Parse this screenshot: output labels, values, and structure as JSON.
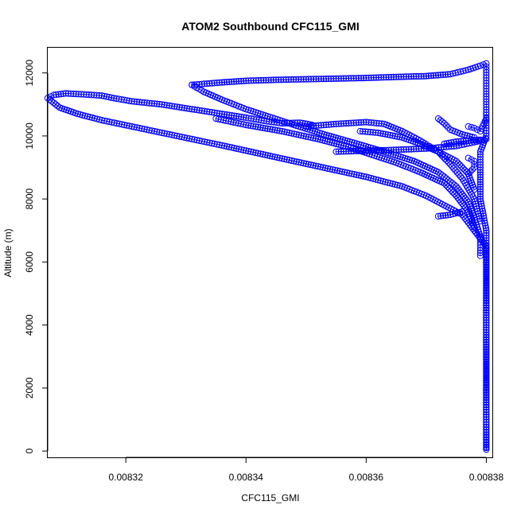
{
  "chart_data": {
    "type": "scatter",
    "title": "ATOM2 Southbound CFC115_GMI",
    "xlabel": "CFC115_GMI",
    "ylabel": "Altitude (m)",
    "xlim": [
      0.008307,
      0.008381
    ],
    "ylim": [
      -200,
      12800
    ],
    "x_ticks": [
      0.00832,
      0.00834,
      0.00836,
      0.00838
    ],
    "x_tick_labels": [
      "0.00832",
      "0.00834",
      "0.00836",
      "0.00838"
    ],
    "y_ticks": [
      0,
      2000,
      4000,
      6000,
      8000,
      10000,
      12000
    ],
    "y_tick_labels": [
      "0",
      "2000",
      "4000",
      "6000",
      "8000",
      "10000",
      "12000"
    ],
    "grid": false,
    "legend": "none",
    "colors": {
      "series": "#0000ff",
      "axes": "#000000"
    },
    "series": [
      {
        "marker": "open-circle",
        "connected": true,
        "segments": [
          [
            [
              0.00838,
              50
            ],
            [
              0.00838,
              1000
            ],
            [
              0.00838,
              2000
            ],
            [
              0.00838,
              3000
            ],
            [
              0.00838,
              4000
            ],
            [
              0.00838,
              5000
            ],
            [
              0.00838,
              6000
            ],
            [
              0.00838,
              6500
            ],
            [
              0.008378,
              7000
            ],
            [
              0.008376,
              7500
            ],
            [
              0.008373,
              7800
            ],
            [
              0.00837,
              8100
            ],
            [
              0.008366,
              8400
            ],
            [
              0.00836,
              8700
            ],
            [
              0.008354,
              8950
            ],
            [
              0.008348,
              9200
            ],
            [
              0.008342,
              9450
            ],
            [
              0.008336,
              9700
            ],
            [
              0.008331,
              9900
            ],
            [
              0.008326,
              10100
            ],
            [
              0.008321,
              10300
            ],
            [
              0.008316,
              10500
            ],
            [
              0.008312,
              10700
            ],
            [
              0.008309,
              10900
            ],
            [
              0.008308,
              11050
            ],
            [
              0.008307,
              11200
            ],
            [
              0.008308,
              11300
            ],
            [
              0.00831,
              11350
            ],
            [
              0.008313,
              11320
            ],
            [
              0.008316,
              11280
            ],
            [
              0.008318,
              11200
            ],
            [
              0.008321,
              11100
            ],
            [
              0.008326,
              11000
            ],
            [
              0.008331,
              10850
            ],
            [
              0.008336,
              10700
            ],
            [
              0.00834,
              10580
            ],
            [
              0.008343,
              10480
            ],
            [
              0.008346,
              10400
            ],
            [
              0.008349,
              10420
            ],
            [
              0.008351,
              10350
            ]
          ],
          [
            [
              0.008331,
              11620
            ],
            [
              0.008336,
              11700
            ],
            [
              0.00834,
              11750
            ],
            [
              0.008345,
              11780
            ],
            [
              0.00835,
              11800
            ],
            [
              0.008355,
              11820
            ],
            [
              0.00836,
              11840
            ],
            [
              0.008365,
              11870
            ],
            [
              0.00837,
              11900
            ],
            [
              0.008374,
              11960
            ],
            [
              0.008377,
              12100
            ],
            [
              0.008379,
              12230
            ],
            [
              0.00838,
              12300
            ],
            [
              0.00838,
              12100
            ],
            [
              0.00838,
              11500
            ],
            [
              0.00838,
              11000
            ],
            [
              0.00838,
              10500
            ],
            [
              0.00838,
              10000
            ],
            [
              0.008379,
              9500
            ],
            [
              0.008379,
              9000
            ],
            [
              0.008379,
              8000
            ],
            [
              0.00838,
              7000
            ],
            [
              0.00838,
              5500
            ],
            [
              0.00838,
              4000
            ],
            [
              0.00838,
              2500
            ],
            [
              0.00838,
              1000
            ],
            [
              0.00838,
              100
            ]
          ],
          [
            [
              0.008331,
              11620
            ],
            [
              0.008333,
              11400
            ],
            [
              0.008336,
              11150
            ],
            [
              0.00834,
              10850
            ],
            [
              0.008344,
              10600
            ],
            [
              0.008348,
              10350
            ],
            [
              0.008353,
              10050
            ],
            [
              0.008358,
              9780
            ],
            [
              0.008363,
              9500
            ],
            [
              0.008368,
              9200
            ],
            [
              0.008372,
              8850
            ],
            [
              0.008375,
              8400
            ],
            [
              0.008377,
              7900
            ],
            [
              0.008378,
              7400
            ],
            [
              0.008379,
              6800
            ],
            [
              0.008379,
              6200
            ]
          ],
          [
            [
              0.008335,
              10550
            ],
            [
              0.00834,
              10350
            ],
            [
              0.008346,
              10150
            ],
            [
              0.008352,
              9900
            ],
            [
              0.008357,
              9650
            ],
            [
              0.008361,
              9400
            ],
            [
              0.008365,
              9150
            ],
            [
              0.008369,
              8850
            ],
            [
              0.008373,
              8500
            ],
            [
              0.008375,
              8100
            ],
            [
              0.008377,
              7600
            ],
            [
              0.008378,
              7100
            ]
          ],
          [
            [
              0.00835,
              10300
            ],
            [
              0.008355,
              10380
            ],
            [
              0.00836,
              10440
            ],
            [
              0.008363,
              10380
            ],
            [
              0.008366,
              10150
            ],
            [
              0.008369,
              9850
            ],
            [
              0.008372,
              9500
            ],
            [
              0.008374,
              9100
            ],
            [
              0.008376,
              8650
            ],
            [
              0.008378,
              8000
            ],
            [
              0.008379,
              7300
            ]
          ],
          [
            [
              0.008355,
              9500
            ],
            [
              0.00836,
              9530
            ],
            [
              0.008365,
              9560
            ],
            [
              0.00837,
              9600
            ],
            [
              0.008375,
              9680
            ],
            [
              0.008378,
              9800
            ],
            [
              0.00838,
              9900
            ]
          ],
          [
            [
              0.008359,
              10150
            ],
            [
              0.008362,
              10100
            ],
            [
              0.008366,
              9950
            ],
            [
              0.008369,
              9750
            ],
            [
              0.008372,
              9500
            ],
            [
              0.008375,
              9200
            ],
            [
              0.008377,
              8800
            ],
            [
              0.008378,
              8300
            ]
          ],
          [
            [
              0.008373,
              9750
            ],
            [
              0.008375,
              9820
            ],
            [
              0.008377,
              9850
            ],
            [
              0.008379,
              9880
            ]
          ],
          [
            [
              0.008372,
              10550
            ],
            [
              0.008373,
              10400
            ],
            [
              0.008374,
              10200
            ],
            [
              0.008376,
              10050
            ],
            [
              0.008378,
              9950
            ]
          ],
          [
            [
              0.008377,
              8800
            ],
            [
              0.008378,
              9000
            ],
            [
              0.008378,
              9200
            ],
            [
              0.008377,
              9300
            ]
          ],
          [
            [
              0.008376,
              7600
            ],
            [
              0.008374,
              7500
            ],
            [
              0.008372,
              7450
            ]
          ],
          [
            [
              0.008377,
              10300
            ],
            [
              0.008378,
              10250
            ],
            [
              0.008379,
              10150
            ],
            [
              0.00838,
              10550
            ]
          ]
        ]
      }
    ]
  }
}
